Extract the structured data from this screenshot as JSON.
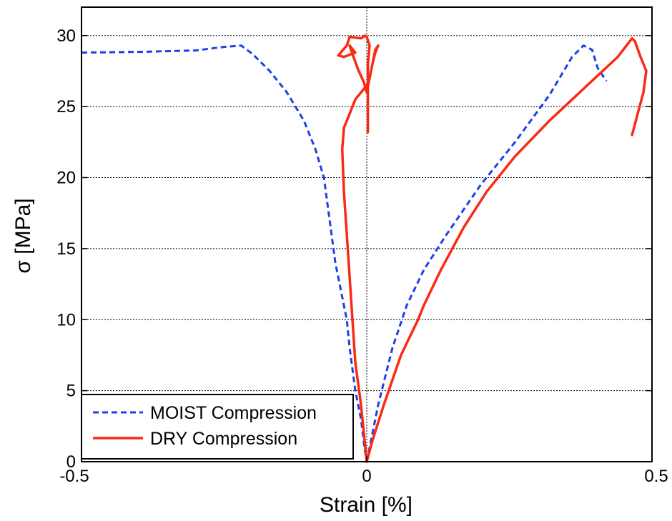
{
  "chart_data": {
    "type": "line",
    "xlabel": "Strain [%]",
    "ylabel": "σ [MPa]",
    "xlim": [
      -0.5,
      0.5
    ],
    "ylim": [
      0,
      32
    ],
    "x_ticks": [
      -0.5,
      0,
      0.5
    ],
    "x_tick_labels": [
      "-0.5",
      "0",
      "0.5"
    ],
    "y_ticks": [
      0,
      5,
      10,
      15,
      20,
      25,
      30
    ],
    "y_tick_labels": [
      "0",
      "5",
      "10",
      "15",
      "20",
      "25",
      "30"
    ],
    "grid": true,
    "legend_position": "bottom-left",
    "series": [
      {
        "name": "MOIST Compression",
        "color": "#1f3fe8",
        "dash": "dashed",
        "segments": [
          [
            [
              -0.5,
              28.8
            ],
            [
              -0.4,
              28.85
            ],
            [
              -0.3,
              28.95
            ],
            [
              -0.25,
              29.2
            ],
            [
              -0.22,
              29.3
            ],
            [
              -0.2,
              28.7
            ],
            [
              -0.17,
              27.5
            ],
            [
              -0.14,
              26.0
            ],
            [
              -0.11,
              24.0
            ],
            [
              -0.09,
              22.0
            ],
            [
              -0.075,
              20.0
            ],
            [
              -0.065,
              17.0
            ],
            [
              -0.055,
              14.0
            ],
            [
              -0.035,
              10.0
            ],
            [
              -0.03,
              8.0
            ],
            [
              -0.02,
              5.0
            ],
            [
              -0.01,
              3.0
            ],
            [
              -0.004,
              1.0
            ],
            [
              0.0,
              0.0
            ]
          ],
          [
            [
              0.0,
              0.0
            ],
            [
              0.02,
              4.0
            ],
            [
              0.045,
              8.0
            ],
            [
              0.07,
              11.0
            ],
            [
              0.1,
              13.5
            ],
            [
              0.14,
              16.0
            ],
            [
              0.2,
              19.5
            ],
            [
              0.26,
              22.5
            ],
            [
              0.32,
              25.8
            ],
            [
              0.36,
              28.5
            ],
            [
              0.38,
              29.3
            ],
            [
              0.395,
              29.0
            ],
            [
              0.405,
              27.7
            ],
            [
              0.42,
              26.8
            ]
          ]
        ]
      },
      {
        "name": "DRY Compression",
        "color": "#fa2a14",
        "dash": "solid",
        "segments": [
          [
            [
              0.0,
              0.0
            ],
            [
              -0.005,
              2.0
            ],
            [
              -0.01,
              4.0
            ],
            [
              -0.02,
              7.0
            ],
            [
              -0.025,
              10.0
            ],
            [
              -0.03,
              13.0
            ],
            [
              -0.035,
              16.0
            ],
            [
              -0.04,
              19.0
            ],
            [
              -0.043,
              22.0
            ],
            [
              -0.04,
              23.5
            ],
            [
              -0.03,
              24.5
            ],
            [
              -0.02,
              25.5
            ],
            [
              -0.01,
              26.0
            ],
            [
              0.0,
              26.5
            ],
            [
              0.005,
              27.0
            ],
            [
              0.01,
              28.0
            ],
            [
              0.015,
              29.0
            ],
            [
              0.02,
              29.3
            ],
            [
              0.015,
              28.8
            ],
            [
              0.01,
              28.0
            ],
            [
              0.005,
              27.0
            ],
            [
              0.0,
              26.0
            ],
            [
              -0.005,
              26.7
            ],
            [
              -0.015,
              27.6
            ],
            [
              -0.025,
              28.7
            ],
            [
              -0.03,
              29.3
            ],
            [
              -0.02,
              28.8
            ],
            [
              -0.04,
              28.5
            ],
            [
              -0.05,
              28.6
            ],
            [
              -0.035,
              29.3
            ],
            [
              -0.03,
              29.9
            ],
            [
              -0.01,
              29.8
            ],
            [
              -0.003,
              30.0
            ],
            [
              0.0,
              29.9
            ],
            [
              0.005,
              29.3
            ],
            [
              0.002,
              28.0
            ],
            [
              0.002,
              26.0
            ],
            [
              0.002,
              23.2
            ]
          ],
          [
            [
              0.0,
              0.0
            ],
            [
              0.01,
              1.5
            ],
            [
              0.03,
              4.0
            ],
            [
              0.06,
              7.5
            ],
            [
              0.09,
              10.0
            ],
            [
              0.1,
              11.0
            ],
            [
              0.13,
              13.5
            ],
            [
              0.17,
              16.5
            ],
            [
              0.21,
              19.0
            ],
            [
              0.26,
              21.5
            ],
            [
              0.32,
              24.0
            ],
            [
              0.36,
              25.5
            ],
            [
              0.4,
              27.0
            ],
            [
              0.44,
              28.5
            ],
            [
              0.465,
              29.8
            ],
            [
              0.47,
              29.6
            ],
            [
              0.48,
              28.5
            ],
            [
              0.49,
              27.5
            ],
            [
              0.485,
              26.0
            ],
            [
              0.475,
              24.5
            ],
            [
              0.465,
              23.0
            ]
          ]
        ]
      }
    ]
  }
}
